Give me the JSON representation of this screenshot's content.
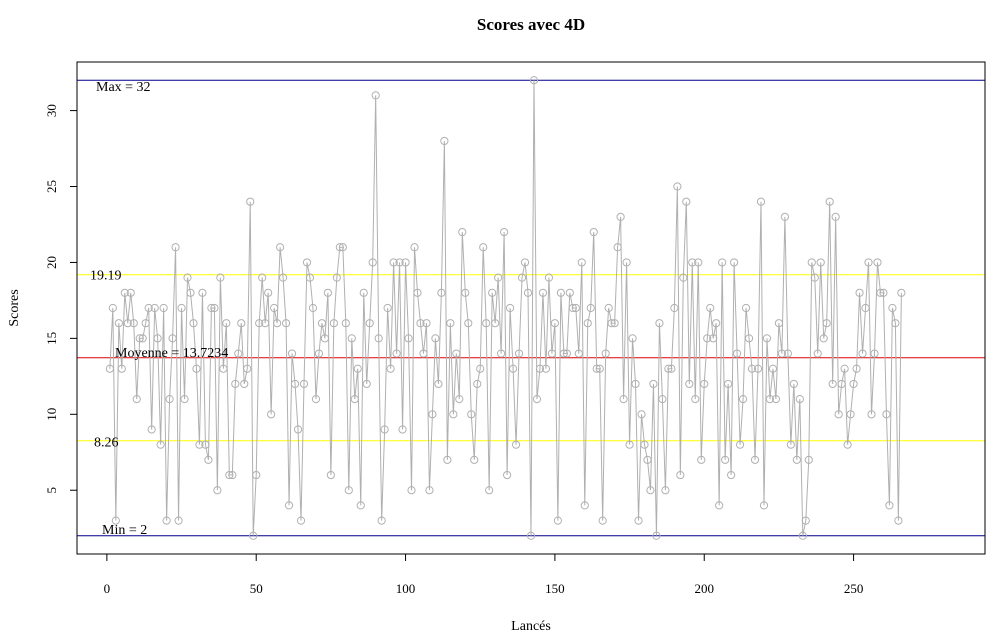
{
  "chart_data": {
    "type": "line",
    "title": "Scores avec 4D",
    "xlabel": "Lancés",
    "ylabel": "Scores",
    "xlim": [
      -10,
      294
    ],
    "ylim": [
      0.8,
      33.2
    ],
    "x_ticks": [
      0,
      50,
      100,
      150,
      200,
      250
    ],
    "y_ticks": [
      5,
      10,
      15,
      20,
      25,
      30
    ],
    "grid": false,
    "series": [
      {
        "color": "#b0b0b0",
        "markers": "open-circle",
        "x_start": 1,
        "values": [
          13,
          17,
          3,
          16,
          13,
          18,
          16,
          18,
          16,
          11,
          15,
          15,
          16,
          17,
          9,
          17,
          15,
          8,
          17,
          3,
          11,
          15,
          21,
          3,
          17,
          11,
          19,
          18,
          16,
          13,
          8,
          18,
          8,
          7,
          17,
          17,
          5,
          19,
          13,
          16,
          6,
          6,
          12,
          14,
          16,
          12,
          13,
          24,
          2,
          6,
          16,
          19,
          16,
          18,
          10,
          17,
          16,
          21,
          19,
          16,
          4,
          14,
          12,
          9,
          3,
          12,
          20,
          19,
          17,
          11,
          14,
          16,
          15,
          18,
          6,
          16,
          19,
          21,
          21,
          16,
          5,
          15,
          11,
          13,
          4,
          18,
          12,
          16,
          20,
          31,
          15,
          3,
          9,
          17,
          13,
          20,
          14,
          20,
          9,
          20,
          15,
          5,
          21,
          18,
          16,
          14,
          16,
          5,
          10,
          15,
          12,
          18,
          28,
          7,
          16,
          10,
          14,
          11,
          22,
          18,
          16,
          10,
          7,
          12,
          13,
          21,
          16,
          5,
          18,
          16,
          19,
          14,
          22,
          6,
          17,
          13,
          8,
          14,
          19,
          20,
          18,
          2,
          32,
          11,
          13,
          18,
          13,
          19,
          14,
          16,
          3,
          18,
          14,
          14,
          18,
          17,
          17,
          14,
          20,
          4,
          16,
          17,
          22,
          13,
          13,
          3,
          14,
          17,
          16,
          16,
          21,
          23,
          11,
          20,
          8,
          15,
          12,
          3,
          10,
          8,
          7,
          5,
          12,
          2,
          16,
          11,
          5,
          13,
          13,
          17,
          25,
          6,
          19,
          24,
          12,
          20,
          11,
          20,
          7,
          12,
          15,
          17,
          15,
          16,
          4,
          20,
          7,
          12,
          6,
          20,
          14,
          8,
          11,
          17,
          15,
          13,
          7,
          13,
          24,
          4,
          15,
          11,
          13,
          11,
          16,
          14,
          23,
          14,
          8,
          12,
          7,
          11,
          2,
          3,
          7,
          20,
          19,
          14,
          20,
          15,
          16,
          24,
          12,
          23,
          10,
          12,
          13,
          8,
          10,
          12,
          13,
          18,
          14,
          17,
          20,
          10,
          14,
          20,
          18,
          18,
          10,
          4,
          17,
          16,
          3,
          18
        ]
      }
    ],
    "hlines": [
      {
        "name": "max",
        "value": 32,
        "color": "#00008b",
        "label": "Max =  32"
      },
      {
        "name": "upper",
        "value": 19.19,
        "color": "#ffff00",
        "label": "19.19"
      },
      {
        "name": "mean",
        "value": 13.7234,
        "color": "#e00000",
        "label": "Moyenne =  13.7234"
      },
      {
        "name": "lower",
        "value": 8.26,
        "color": "#ffff00",
        "label": "8.26"
      },
      {
        "name": "min",
        "value": 2,
        "color": "#00008b",
        "label": "Min =  2"
      }
    ]
  }
}
